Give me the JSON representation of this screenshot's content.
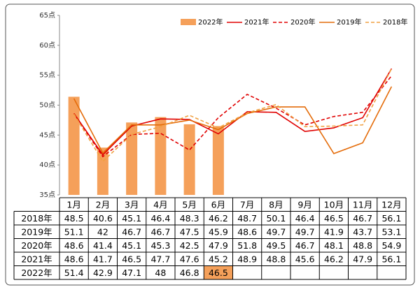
{
  "chart_data": {
    "type": "bar_line_table",
    "categories": [
      "1月",
      "2月",
      "3月",
      "4月",
      "5月",
      "6月",
      "7月",
      "8月",
      "9月",
      "10月",
      "11月",
      "12月"
    ],
    "ylim": [
      35,
      65
    ],
    "yticks": [
      {
        "value": 35,
        "label": "35点"
      },
      {
        "value": 40,
        "label": "40点"
      },
      {
        "value": 45,
        "label": "45点"
      },
      {
        "value": 50,
        "label": "50点"
      },
      {
        "value": 55,
        "label": "55点"
      },
      {
        "value": 60,
        "label": "60点"
      },
      {
        "value": 65,
        "label": "65点"
      }
    ],
    "legend": "top-right",
    "series": [
      {
        "name": "2022年",
        "color": "#f5a05a",
        "kind": "bar",
        "values": [
          51.4,
          42.9,
          47.1,
          48.0,
          46.8,
          46.5,
          null,
          null,
          null,
          null,
          null,
          null
        ]
      },
      {
        "name": "2021年",
        "color": "#e00000",
        "kind": "line",
        "dash": false,
        "values": [
          48.6,
          41.7,
          46.5,
          47.7,
          47.6,
          45.2,
          48.9,
          48.8,
          45.6,
          46.2,
          47.9,
          56.1
        ]
      },
      {
        "name": "2020年",
        "color": "#e00000",
        "kind": "line",
        "dash": true,
        "values": [
          48.6,
          41.4,
          45.1,
          45.3,
          42.5,
          47.9,
          51.8,
          49.5,
          46.7,
          48.1,
          48.8,
          54.9
        ]
      },
      {
        "name": "2019年",
        "color": "#e46c0a",
        "kind": "line",
        "dash": false,
        "values": [
          51.1,
          42.0,
          46.7,
          46.7,
          47.5,
          45.9,
          48.6,
          49.7,
          49.7,
          41.9,
          43.7,
          53.1
        ]
      },
      {
        "name": "2018年",
        "color": "#f0a040",
        "kind": "line",
        "dash": true,
        "values": [
          48.5,
          40.6,
          45.1,
          46.4,
          48.3,
          46.2,
          48.7,
          50.1,
          46.4,
          46.5,
          46.7,
          56.1
        ]
      }
    ]
  }
}
